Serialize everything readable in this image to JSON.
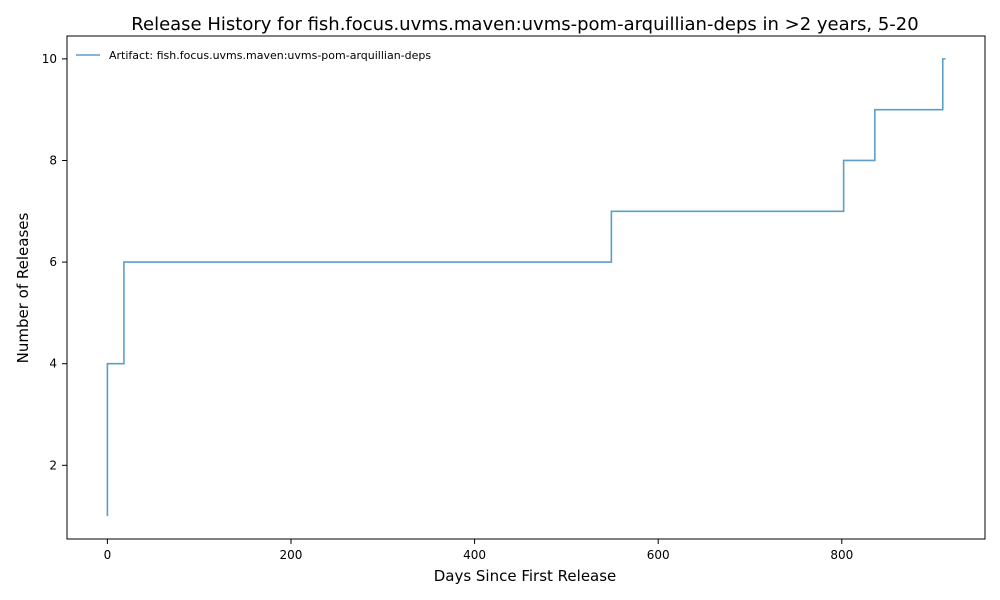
{
  "chart_data": {
    "type": "line",
    "title": "Release History for fish.focus.uvms.maven:uvms-pom-arquillian-deps in >2 years, 5-20",
    "xlabel": "Days Since First Release",
    "ylabel": "Number of Releases",
    "xlim": [
      -44,
      956
    ],
    "ylim": [
      0.55,
      10.45
    ],
    "xticks": [
      0,
      200,
      400,
      600,
      800
    ],
    "yticks": [
      2,
      4,
      6,
      8,
      10
    ],
    "grid": false,
    "legend_position": "top-left",
    "step": "post",
    "series": [
      {
        "name": "Artifact: fish.focus.uvms.maven:uvms-pom-arquillian-deps",
        "color": "#5b9fc8",
        "x": [
          0,
          0,
          0,
          0,
          18,
          18,
          549,
          802,
          836,
          910,
          913
        ],
        "y": [
          1,
          2,
          3,
          4,
          5,
          6,
          7,
          8,
          9,
          10,
          10
        ]
      }
    ]
  }
}
